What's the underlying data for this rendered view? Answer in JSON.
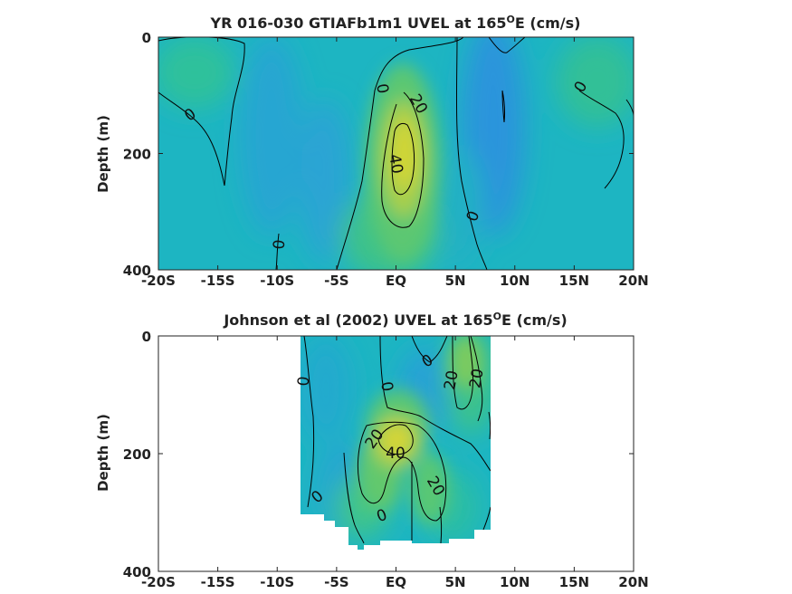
{
  "chart_data": [
    {
      "type": "heatmap",
      "title": "YR 016-030 GTIAFb1m1 UVEL at 165",
      "title_superscript": "O",
      "title_suffix": "E (cm/s)",
      "ylabel": "Depth (m)",
      "x_ticks": [
        "-20S",
        "-15S",
        "-10S",
        "-5S",
        "EQ",
        "5N",
        "10N",
        "15N",
        "20N"
      ],
      "y_ticks": [
        "0",
        "200",
        "400"
      ],
      "xlim": [
        -20,
        20
      ],
      "ylim": [
        0,
        400
      ],
      "contour_labels": [
        "0",
        "0",
        "0",
        "20",
        "40",
        "0",
        "0"
      ],
      "colors": {
        "background": "#1cb3c3",
        "jet_core": "#cfd33a",
        "westward": "#2c9cd8"
      }
    },
    {
      "type": "heatmap",
      "title": "Johnson et al (2002) UVEL at 165",
      "title_superscript": "O",
      "title_suffix": "E (cm/s)",
      "ylabel": "Depth (m)",
      "x_ticks": [
        "-20S",
        "-15S",
        "-10S",
        "-5S",
        "EQ",
        "5N",
        "10N",
        "15N",
        "20N"
      ],
      "y_ticks": [
        "0",
        "200",
        "400"
      ],
      "xlim": [
        -20,
        20
      ],
      "ylim": [
        0,
        400
      ],
      "contour_labels": [
        "0",
        "0",
        "0",
        "20",
        "20",
        "20",
        "40",
        "20",
        "0",
        "0"
      ],
      "colors": {
        "background": "#1cb3c3",
        "jet_core": "#cfd33a",
        "westward": "#2c9cd8"
      }
    }
  ]
}
